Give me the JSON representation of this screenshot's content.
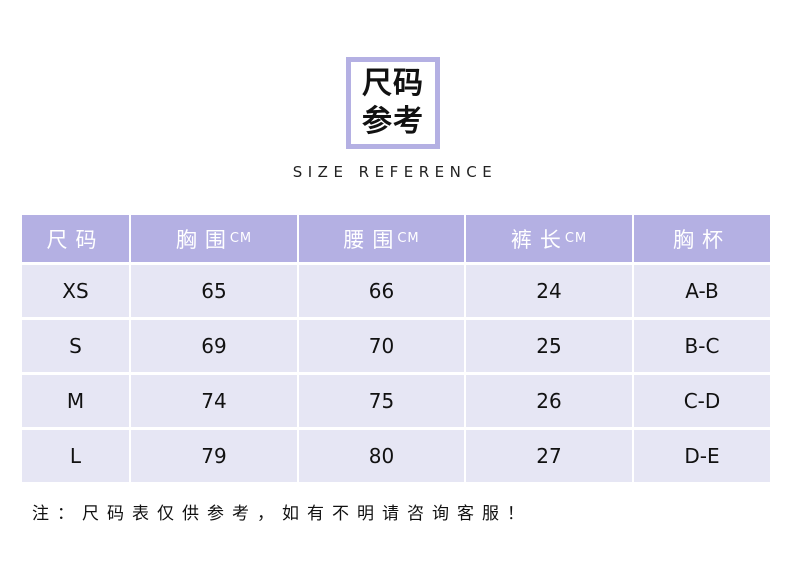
{
  "logo": {
    "line1": "尺码",
    "line2": "参考"
  },
  "subtitle": "SIZE REFERENCE",
  "table": {
    "headers": [
      {
        "label": "尺码",
        "unit": ""
      },
      {
        "label": "胸围",
        "unit": "CM"
      },
      {
        "label": "腰围",
        "unit": "CM"
      },
      {
        "label": "裤长",
        "unit": "CM"
      },
      {
        "label": "胸杯",
        "unit": ""
      }
    ],
    "rows": [
      [
        "XS",
        "65",
        "66",
        "24",
        "A-B"
      ],
      [
        "S",
        "69",
        "70",
        "25",
        "B-C"
      ],
      [
        "M",
        "74",
        "75",
        "26",
        "C-D"
      ],
      [
        "L",
        "79",
        "80",
        "27",
        "D-E"
      ]
    ]
  },
  "note": "注：尺码表仅供参考，如有不明请咨询客服！",
  "colors": {
    "accent": "#b4b0e3",
    "row_bg": "#e6e6f4"
  }
}
